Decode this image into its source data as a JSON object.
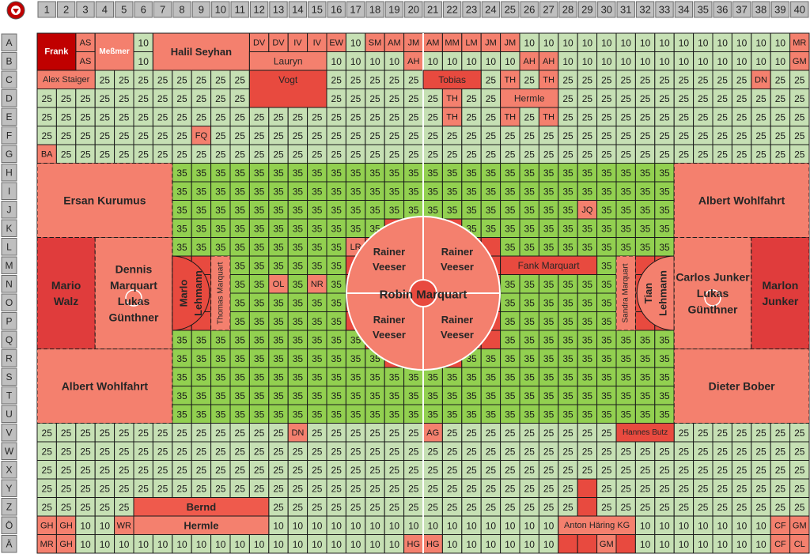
{
  "columns": [
    1,
    2,
    3,
    4,
    5,
    6,
    7,
    8,
    9,
    10,
    11,
    12,
    13,
    14,
    15,
    16,
    17,
    18,
    19,
    20,
    21,
    22,
    23,
    24,
    25,
    26,
    27,
    28,
    29,
    30,
    31,
    32,
    33,
    34,
    35,
    36,
    37,
    38,
    39,
    40
  ],
  "rows": [
    {
      "label": "A",
      "cells": [
        null,
        null,
        "AS",
        null,
        null,
        10,
        null,
        null,
        null,
        null,
        null,
        "DV",
        "DV",
        "IV",
        "IV",
        "EW",
        10,
        "SM",
        "AM",
        "JM",
        "AM",
        "MM",
        "LM",
        "JM",
        "JM",
        10,
        10,
        10,
        10,
        10,
        10,
        10,
        10,
        10,
        10,
        10,
        10,
        10,
        10,
        "MR"
      ]
    },
    {
      "label": "B",
      "cells": [
        null,
        null,
        "AS",
        null,
        null,
        10,
        null,
        null,
        null,
        null,
        null,
        null,
        null,
        null,
        null,
        10,
        10,
        10,
        10,
        "AH",
        10,
        10,
        10,
        10,
        10,
        "AH",
        "AH",
        10,
        10,
        10,
        10,
        10,
        10,
        10,
        10,
        10,
        10,
        10,
        10,
        "GM"
      ]
    },
    {
      "label": "C",
      "cells": [
        null,
        null,
        null,
        25,
        25,
        25,
        25,
        25,
        25,
        25,
        25,
        null,
        null,
        null,
        null,
        25,
        25,
        25,
        25,
        25,
        null,
        null,
        null,
        25,
        "TH",
        25,
        "TH",
        25,
        25,
        25,
        25,
        25,
        25,
        25,
        25,
        25,
        25,
        "DN",
        25,
        25
      ]
    },
    {
      "label": "D",
      "cells": [
        25,
        25,
        25,
        25,
        25,
        25,
        25,
        25,
        25,
        25,
        25,
        null,
        null,
        null,
        null,
        25,
        25,
        25,
        25,
        25,
        25,
        "TH",
        25,
        25,
        null,
        null,
        null,
        25,
        25,
        25,
        25,
        25,
        25,
        25,
        25,
        25,
        25,
        25,
        25,
        25
      ]
    },
    {
      "label": "E",
      "cells": [
        25,
        25,
        25,
        25,
        25,
        25,
        25,
        25,
        25,
        25,
        25,
        25,
        25,
        25,
        25,
        25,
        25,
        25,
        25,
        25,
        25,
        "TH",
        25,
        25,
        "TH",
        25,
        "TH",
        25,
        25,
        25,
        25,
        25,
        25,
        25,
        25,
        25,
        25,
        25,
        25,
        25
      ]
    },
    {
      "label": "F",
      "cells": [
        25,
        25,
        25,
        25,
        25,
        25,
        25,
        25,
        "FQ",
        25,
        25,
        25,
        25,
        25,
        25,
        25,
        25,
        25,
        25,
        25,
        25,
        25,
        25,
        25,
        25,
        25,
        25,
        25,
        25,
        25,
        25,
        25,
        25,
        25,
        25,
        25,
        25,
        25,
        25,
        25
      ]
    },
    {
      "label": "G",
      "cells": [
        "BA",
        25,
        25,
        25,
        25,
        25,
        25,
        25,
        25,
        25,
        25,
        25,
        25,
        25,
        25,
        25,
        25,
        25,
        25,
        25,
        25,
        25,
        25,
        25,
        25,
        25,
        25,
        25,
        25,
        25,
        25,
        25,
        25,
        25,
        25,
        25,
        25,
        25,
        25,
        25
      ]
    },
    {
      "label": "H",
      "cells": [
        null,
        null,
        null,
        null,
        null,
        null,
        null,
        35,
        35,
        35,
        35,
        35,
        35,
        35,
        35,
        35,
        35,
        35,
        35,
        35,
        35,
        35,
        35,
        35,
        35,
        35,
        35,
        35,
        35,
        35,
        35,
        35,
        35,
        null,
        null,
        null,
        null,
        null,
        null,
        null
      ]
    },
    {
      "label": "I",
      "cells": [
        null,
        null,
        null,
        null,
        null,
        null,
        null,
        35,
        35,
        35,
        35,
        35,
        35,
        35,
        35,
        35,
        35,
        35,
        35,
        35,
        35,
        35,
        35,
        35,
        35,
        35,
        35,
        35,
        35,
        35,
        35,
        35,
        35,
        null,
        null,
        null,
        null,
        null,
        null,
        null
      ]
    },
    {
      "label": "J",
      "cells": [
        null,
        null,
        null,
        null,
        null,
        null,
        null,
        35,
        35,
        35,
        35,
        35,
        35,
        35,
        35,
        35,
        35,
        35,
        35,
        35,
        35,
        35,
        35,
        35,
        35,
        35,
        35,
        35,
        "JQ",
        35,
        35,
        35,
        35,
        null,
        null,
        null,
        null,
        null,
        null,
        null
      ]
    },
    {
      "label": "K",
      "cells": [
        null,
        null,
        null,
        null,
        null,
        null,
        null,
        35,
        35,
        35,
        35,
        35,
        35,
        35,
        35,
        35,
        35,
        35,
        null,
        null,
        null,
        null,
        35,
        35,
        35,
        35,
        35,
        35,
        35,
        35,
        35,
        35,
        35,
        null,
        null,
        null,
        null,
        null,
        null,
        null
      ]
    },
    {
      "label": "L",
      "cells": [
        null,
        null,
        null,
        null,
        null,
        null,
        null,
        35,
        35,
        35,
        35,
        35,
        35,
        35,
        35,
        35,
        "LR",
        null,
        null,
        null,
        null,
        null,
        null,
        null,
        35,
        35,
        35,
        35,
        35,
        35,
        35,
        35,
        35,
        null,
        null,
        null,
        null,
        null,
        null,
        null
      ]
    },
    {
      "label": "M",
      "cells": [
        null,
        null,
        null,
        null,
        null,
        null,
        null,
        null,
        null,
        null,
        35,
        35,
        35,
        35,
        35,
        35,
        null,
        null,
        null,
        null,
        null,
        null,
        null,
        null,
        null,
        null,
        null,
        null,
        null,
        35,
        null,
        null,
        null,
        null,
        null,
        null,
        null,
        null,
        null,
        null
      ]
    },
    {
      "label": "N",
      "cells": [
        null,
        null,
        null,
        null,
        null,
        null,
        null,
        null,
        null,
        null,
        35,
        35,
        "OL",
        35,
        "NR",
        35,
        null,
        null,
        null,
        null,
        null,
        null,
        null,
        null,
        35,
        35,
        35,
        35,
        35,
        35,
        null,
        null,
        null,
        null,
        null,
        null,
        null,
        null,
        null,
        null
      ]
    },
    {
      "label": "O",
      "cells": [
        null,
        null,
        null,
        null,
        null,
        null,
        null,
        null,
        null,
        null,
        35,
        35,
        35,
        35,
        35,
        35,
        null,
        null,
        null,
        null,
        null,
        null,
        null,
        null,
        35,
        35,
        35,
        35,
        35,
        35,
        null,
        null,
        null,
        null,
        null,
        null,
        null,
        null,
        null,
        null
      ]
    },
    {
      "label": "P",
      "cells": [
        null,
        null,
        null,
        null,
        null,
        null,
        null,
        null,
        null,
        null,
        35,
        35,
        35,
        35,
        35,
        35,
        null,
        null,
        null,
        null,
        null,
        null,
        null,
        null,
        35,
        35,
        35,
        35,
        35,
        35,
        null,
        null,
        null,
        null,
        null,
        null,
        null,
        null,
        null,
        null
      ]
    },
    {
      "label": "Q",
      "cells": [
        null,
        null,
        null,
        null,
        null,
        null,
        null,
        35,
        35,
        35,
        35,
        35,
        35,
        35,
        35,
        35,
        35,
        null,
        null,
        null,
        null,
        null,
        null,
        null,
        35,
        35,
        35,
        35,
        35,
        35,
        35,
        35,
        35,
        null,
        null,
        null,
        null,
        null,
        null,
        null
      ]
    },
    {
      "label": "R",
      "cells": [
        null,
        null,
        null,
        null,
        null,
        null,
        null,
        35,
        35,
        35,
        35,
        35,
        35,
        35,
        35,
        35,
        35,
        35,
        null,
        null,
        null,
        null,
        35,
        35,
        35,
        35,
        35,
        35,
        35,
        35,
        35,
        35,
        35,
        null,
        null,
        null,
        null,
        null,
        null,
        null
      ]
    },
    {
      "label": "S",
      "cells": [
        null,
        null,
        null,
        null,
        null,
        null,
        null,
        35,
        35,
        35,
        35,
        35,
        35,
        35,
        35,
        35,
        35,
        35,
        35,
        35,
        35,
        35,
        35,
        35,
        35,
        35,
        35,
        35,
        35,
        35,
        35,
        35,
        35,
        null,
        null,
        null,
        null,
        null,
        null,
        null
      ]
    },
    {
      "label": "T",
      "cells": [
        null,
        null,
        null,
        null,
        null,
        null,
        null,
        35,
        35,
        35,
        35,
        35,
        35,
        35,
        35,
        35,
        35,
        35,
        35,
        35,
        35,
        35,
        35,
        35,
        35,
        35,
        35,
        35,
        35,
        35,
        35,
        35,
        35,
        null,
        null,
        null,
        null,
        null,
        null,
        null
      ]
    },
    {
      "label": "U",
      "cells": [
        null,
        null,
        null,
        null,
        null,
        null,
        null,
        35,
        35,
        35,
        35,
        35,
        35,
        35,
        35,
        35,
        35,
        35,
        35,
        35,
        35,
        35,
        35,
        35,
        35,
        35,
        35,
        35,
        35,
        35,
        35,
        35,
        35,
        null,
        null,
        null,
        null,
        null,
        null,
        null
      ]
    },
    {
      "label": "V",
      "cells": [
        25,
        25,
        25,
        25,
        25,
        25,
        25,
        25,
        25,
        25,
        25,
        25,
        25,
        "DN",
        25,
        25,
        25,
        25,
        25,
        25,
        "AG",
        25,
        25,
        25,
        25,
        25,
        25,
        25,
        25,
        25,
        null,
        null,
        null,
        25,
        25,
        25,
        25,
        25,
        25,
        25
      ]
    },
    {
      "label": "W",
      "cells": [
        25,
        25,
        25,
        25,
        25,
        25,
        25,
        25,
        25,
        25,
        25,
        25,
        25,
        25,
        25,
        25,
        25,
        25,
        25,
        25,
        25,
        25,
        25,
        25,
        25,
        25,
        25,
        25,
        25,
        25,
        25,
        25,
        25,
        25,
        25,
        25,
        25,
        25,
        25,
        25
      ]
    },
    {
      "label": "X",
      "cells": [
        25,
        25,
        25,
        25,
        25,
        25,
        25,
        25,
        25,
        25,
        25,
        25,
        25,
        25,
        25,
        25,
        25,
        25,
        25,
        25,
        25,
        25,
        25,
        25,
        25,
        25,
        25,
        25,
        25,
        25,
        25,
        25,
        25,
        25,
        25,
        25,
        25,
        25,
        25,
        25
      ]
    },
    {
      "label": "Y",
      "cells": [
        25,
        25,
        25,
        25,
        25,
        25,
        25,
        25,
        25,
        25,
        25,
        25,
        25,
        25,
        25,
        25,
        25,
        25,
        25,
        25,
        25,
        25,
        25,
        25,
        25,
        25,
        25,
        25,
        null,
        25,
        25,
        25,
        25,
        25,
        25,
        25,
        25,
        25,
        25,
        25
      ]
    },
    {
      "label": "Z",
      "cells": [
        25,
        25,
        25,
        25,
        25,
        null,
        null,
        null,
        null,
        null,
        null,
        null,
        25,
        25,
        25,
        25,
        25,
        25,
        25,
        25,
        25,
        25,
        25,
        25,
        25,
        25,
        25,
        25,
        null,
        25,
        25,
        25,
        25,
        25,
        25,
        25,
        25,
        25,
        25,
        25
      ]
    },
    {
      "label": "Ö",
      "cells": [
        "GH",
        "GH",
        10,
        10,
        "WR",
        null,
        null,
        null,
        null,
        null,
        null,
        null,
        10,
        10,
        10,
        10,
        10,
        10,
        10,
        10,
        10,
        10,
        10,
        10,
        10,
        10,
        10,
        null,
        null,
        null,
        null,
        10,
        10,
        10,
        10,
        10,
        10,
        10,
        "CF",
        "GM"
      ]
    },
    {
      "label": "Ä",
      "cells": [
        "MR",
        "GH",
        10,
        10,
        10,
        10,
        10,
        10,
        10,
        10,
        10,
        10,
        10,
        10,
        10,
        10,
        10,
        10,
        10,
        "HG",
        "HG",
        10,
        10,
        10,
        10,
        10,
        10,
        null,
        null,
        "GM",
        null,
        10,
        10,
        10,
        10,
        10,
        10,
        10,
        "CF",
        "CL"
      ]
    }
  ],
  "blocks": [
    {
      "lines": [
        "Frank"
      ],
      "color": "#c00000"
    },
    {
      "lines": [
        "Meßmer"
      ],
      "color": "#f4806e"
    },
    {
      "lines": [
        "Halil Seyhan"
      ],
      "color": "#f4806e"
    },
    {
      "lines": [
        "Lauryn"
      ],
      "color": "#f4806e"
    },
    {
      "lines": [
        "Vogt"
      ],
      "color": "#e84a3f"
    },
    {
      "lines": [
        "Alex Staiger"
      ],
      "color": "#f4806e"
    },
    {
      "lines": [
        "Tobias"
      ],
      "color": "#e84a3f"
    },
    {
      "lines": [
        "Hermle"
      ],
      "color": "#f4806e"
    },
    {
      "lines": [
        "Ersan Kurumus"
      ],
      "color": "#f4806e"
    },
    {
      "lines": [
        "Albert Wohlfahrt"
      ],
      "color": "#f4806e"
    },
    {
      "lines": [
        "Mario",
        "Walz"
      ],
      "color": "#e03c3c"
    },
    {
      "lines": [
        "Dennis",
        "Marquart",
        "Lukas",
        "Günthner"
      ],
      "color": "#f4806e"
    },
    {
      "lines": [
        "Marlo",
        "Lehmann"
      ],
      "color": "#e84a3f"
    },
    {
      "lines": [
        "Thomas Marquart"
      ],
      "color": "#f4806e"
    },
    {
      "lines": [
        "Fank Marquart"
      ],
      "color": "#e84a3f"
    },
    {
      "lines": [
        "Sandra Marquart"
      ],
      "color": "#f4806e"
    },
    {
      "lines": [
        "Tian",
        "Lehmann"
      ],
      "color": "#f4806e"
    },
    {
      "lines": [
        "Carlos Junker",
        "Lukas",
        "Günthner"
      ],
      "color": "#f4806e"
    },
    {
      "lines": [
        "Marlon",
        "Junker"
      ],
      "color": "#e03c3c"
    },
    {
      "lines": [
        "Albert Wohlfahrt"
      ],
      "color": "#f4806e"
    },
    {
      "lines": [
        "Dieter Bober"
      ],
      "color": "#f4806e"
    },
    {
      "lines": [
        "Hannes Butz"
      ],
      "color": "#e84a3f"
    },
    {
      "lines": [
        "Bernd"
      ],
      "color": "#ef5a4c"
    },
    {
      "lines": [
        "Hermle"
      ],
      "color": "#f4806e"
    },
    {
      "lines": [
        "Anton Häring KG"
      ],
      "color": "#f4806e"
    }
  ],
  "center_circle": {
    "title": "Robin Marquart",
    "color": "#f4806e",
    "quadrants": [
      {
        "lines": [
          "Rainer",
          "Veeser"
        ]
      },
      {
        "lines": [
          "Rainer",
          "Veeser"
        ]
      },
      {
        "lines": [
          "Rainer",
          "Veeser"
        ]
      },
      {
        "lines": [
          "Rainer",
          "Veeser"
        ]
      }
    ]
  }
}
